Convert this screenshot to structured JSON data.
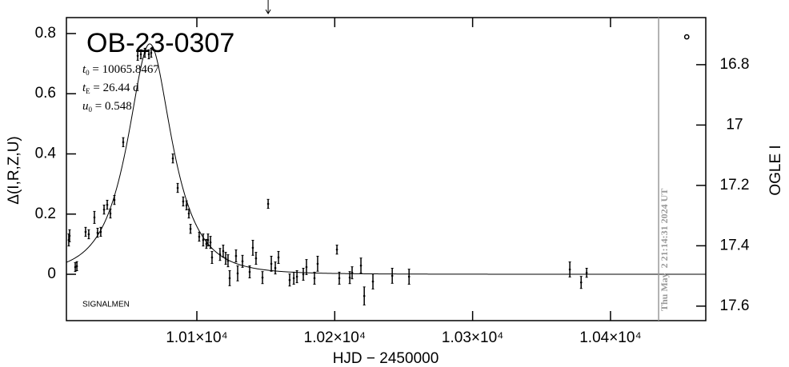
{
  "chart_data": {
    "type": "scatter",
    "title": "OB-23-0307",
    "xlabel": "HJD − 2450000",
    "ylabel": "Δ(I,R,Z,U)",
    "y2label": "OGLE I",
    "footnote": "SIGNALMEN",
    "params": [
      {
        "symbol": "t",
        "sub": "0",
        "sep": " = ",
        "value": 10065.8467
      },
      {
        "symbol": "t",
        "sub": "E",
        "sep": " = ",
        "value": 26.44,
        "unit": "d"
      },
      {
        "symbol": "u",
        "sub": "0",
        "sep": " = ",
        "value": 0.548
      }
    ],
    "xlim": [
      10005.4,
      10469.1
    ],
    "ylim": [
      -0.154,
      0.853
    ],
    "y2lim": [
      17.648,
      16.644
    ],
    "xticks": [
      {
        "value": 10100,
        "label": "1.01×10⁴"
      },
      {
        "value": 10200,
        "label": "1.02×10⁴"
      },
      {
        "value": 10300,
        "label": "1.03×10⁴"
      },
      {
        "value": 10400,
        "label": "1.04×10⁴"
      }
    ],
    "yticks": [
      0,
      0.2,
      0.4,
      0.6,
      0.8
    ],
    "y2ticks": [
      16.8,
      17,
      17.2,
      17.4,
      17.6
    ],
    "color": "#000000",
    "date_line": {
      "x": 10434.9,
      "label": "Thu May  2 21:14:31 2024 UT",
      "color": "#999999"
    },
    "arrow_x": 10151.7,
    "last_marker": {
      "x": 10455.3,
      "y": 0.789
    },
    "x": [
      10007.1,
      10007.7,
      10011.8,
      10013.0,
      10019.3,
      10021.6,
      10025.7,
      10028.0,
      10030.3,
      10032.7,
      10035.0,
      10037.3,
      10040.2,
      10046.6,
      10057.1,
      10059.4,
      10062.3,
      10065.2,
      10066.9,
      10082.6,
      10086.1,
      10090.1,
      10092.5,
      10094.2,
      10095.4,
      10101.7,
      10104.6,
      10106.9,
      10108.1,
      10109.9,
      10111.0,
      10116.8,
      10119.1,
      10120.9,
      10122.6,
      10123.8,
      10128.4,
      10129.6,
      10133.1,
      10138.3,
      10140.6,
      10142.9,
      10147.6,
      10151.7,
      10154.0,
      10156.9,
      10159.2,
      10167.3,
      10170.3,
      10172.6,
      10177.2,
      10179.5,
      10185.3,
      10187.6,
      10201.6,
      10203.3,
      10210.9,
      10212.6,
      10219.0,
      10221.4,
      10227.7,
      10241.7,
      10253.9,
      10370.5,
      10378.7,
      10382.7
    ],
    "values": [
      0.114,
      0.128,
      0.024,
      0.027,
      0.141,
      0.133,
      0.189,
      0.138,
      0.141,
      0.215,
      0.231,
      0.202,
      0.247,
      0.439,
      0.726,
      0.731,
      0.736,
      0.731,
      0.736,
      0.385,
      0.287,
      0.242,
      0.229,
      0.202,
      0.151,
      0.125,
      0.114,
      0.101,
      0.114,
      0.106,
      0.056,
      0.066,
      0.077,
      0.053,
      0.045,
      -0.013,
      0.061,
      0.003,
      0.043,
      0.008,
      0.088,
      0.053,
      -0.011,
      0.234,
      0.035,
      0.021,
      0.056,
      -0.019,
      -0.013,
      -0.008,
      0.0,
      0.024,
      -0.013,
      0.035,
      0.082,
      -0.013,
      -0.011,
      0.005,
      0.029,
      -0.072,
      -0.024,
      -0.005,
      -0.008,
      0.016,
      -0.027,
      0.005
    ],
    "errors": [
      0.02,
      0.02,
      0.015,
      0.015,
      0.015,
      0.015,
      0.02,
      0.015,
      0.015,
      0.015,
      0.015,
      0.015,
      0.015,
      0.015,
      0.015,
      0.015,
      0.015,
      0.015,
      0.015,
      0.015,
      0.015,
      0.015,
      0.015,
      0.015,
      0.015,
      0.015,
      0.02,
      0.015,
      0.02,
      0.02,
      0.02,
      0.02,
      0.02,
      0.02,
      0.02,
      0.025,
      0.02,
      0.025,
      0.02,
      0.02,
      0.025,
      0.02,
      0.02,
      0.015,
      0.025,
      0.02,
      0.02,
      0.02,
      0.02,
      0.02,
      0.02,
      0.025,
      0.02,
      0.025,
      0.015,
      0.02,
      0.02,
      0.02,
      0.025,
      0.03,
      0.025,
      0.025,
      0.025,
      0.025,
      0.02,
      0.015
    ]
  }
}
